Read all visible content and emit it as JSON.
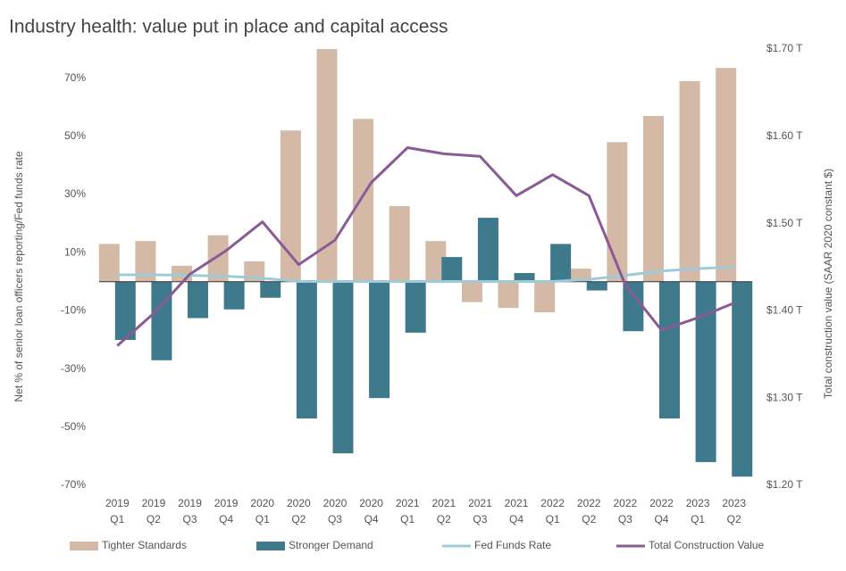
{
  "chart_data": {
    "type": "bar",
    "title": "Industry health: value put in place and capital access",
    "y_label": "Net % of senior loan officers reporting/Fed funds rate",
    "y2_label": "Total construction value (SAAR 2020 constant $)",
    "categories": [
      [
        "2019",
        "Q1"
      ],
      [
        "2019",
        "Q2"
      ],
      [
        "2019",
        "Q3"
      ],
      [
        "2019",
        "Q4"
      ],
      [
        "2020",
        "Q1"
      ],
      [
        "2020",
        "Q2"
      ],
      [
        "2020",
        "Q3"
      ],
      [
        "2020",
        "Q4"
      ],
      [
        "2021",
        "Q1"
      ],
      [
        "2021",
        "Q2"
      ],
      [
        "2021",
        "Q3"
      ],
      [
        "2021",
        "Q4"
      ],
      [
        "2022",
        "Q1"
      ],
      [
        "2022",
        "Q2"
      ],
      [
        "2022",
        "Q3"
      ],
      [
        "2022",
        "Q4"
      ],
      [
        "2023",
        "Q1"
      ],
      [
        "2023",
        "Q2"
      ]
    ],
    "ylim": [
      -70,
      80
    ],
    "yticks": [
      {
        "value": 70,
        "label": "70%"
      },
      {
        "value": 50,
        "label": "50%"
      },
      {
        "value": 30,
        "label": "30%"
      },
      {
        "value": 10,
        "label": "10%"
      },
      {
        "value": -10,
        "label": "-10%"
      },
      {
        "value": -30,
        "label": "-30%"
      },
      {
        "value": -50,
        "label": "-50%"
      },
      {
        "value": -70,
        "label": "-70%"
      }
    ],
    "y2lim": [
      1.2,
      1.7
    ],
    "y2ticks": [
      {
        "value": 1.7,
        "label": "$1.70 T"
      },
      {
        "value": 1.6,
        "label": "$1.60 T"
      },
      {
        "value": 1.5,
        "label": "$1.50 T"
      },
      {
        "value": 1.4,
        "label": "$1.40 T"
      },
      {
        "value": 1.3,
        "label": "$1.30 T"
      },
      {
        "value": 1.2,
        "label": "$1.20 T"
      }
    ],
    "series": [
      {
        "name": "Tighter Standards",
        "type": "bar",
        "color": "#d3b9a6",
        "values": [
          13,
          14,
          5.5,
          16,
          7,
          52,
          80,
          56,
          26,
          14,
          -7,
          -9,
          -10.5,
          4.5,
          48,
          57,
          69,
          73.5
        ]
      },
      {
        "name": "Stronger Demand",
        "type": "bar",
        "color": "#3e7a8c",
        "values": [
          -20,
          -27,
          -12.5,
          -9.5,
          -5.5,
          -47,
          -59,
          -40,
          -17.5,
          8.5,
          22,
          3,
          13,
          -3,
          -17,
          -47,
          -62,
          -67
        ]
      },
      {
        "name": "Fed Funds Rate",
        "type": "line",
        "color": "#9fcbd9",
        "values": [
          2.4,
          2.4,
          2.2,
          1.9,
          1.2,
          0.1,
          0.1,
          0.1,
          0.1,
          0.1,
          0.1,
          0.1,
          0.1,
          0.8,
          2.2,
          3.7,
          4.5,
          5.1
        ]
      },
      {
        "name": "Total Construction Value",
        "type": "line",
        "axis": "y2",
        "color": "#8a5a95",
        "values": [
          1.36,
          1.397,
          1.442,
          1.469,
          1.502,
          1.453,
          1.481,
          1.547,
          1.587,
          1.58,
          1.577,
          1.532,
          1.556,
          1.532,
          1.43,
          1.378,
          1.392,
          1.409
        ]
      }
    ]
  }
}
